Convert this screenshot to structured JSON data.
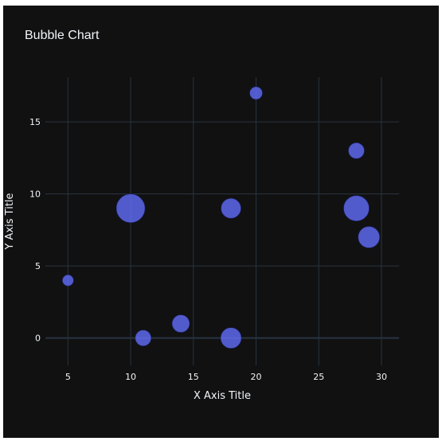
{
  "chart_data": {
    "type": "scatter",
    "title": "Bubble Chart",
    "xlabel": "X Axis Title",
    "ylabel": "Y Axis Title",
    "xlim": [
      3.2,
      31.4
    ],
    "ylim": [
      -1.9,
      18.1
    ],
    "x_ticks": [
      "5",
      "10",
      "15",
      "20",
      "25",
      "30"
    ],
    "y_ticks": [
      "0",
      "5",
      "10",
      "15"
    ],
    "grid": true,
    "marker_color": "#636efa",
    "background_color": "#111111",
    "grid_color": "#283442",
    "text_color": "#f2f5fa",
    "points": [
      {
        "x": 5,
        "y": 4,
        "size": 14
      },
      {
        "x": 10,
        "y": 9,
        "size": 36
      },
      {
        "x": 11,
        "y": 0,
        "size": 20
      },
      {
        "x": 14,
        "y": 1,
        "size": 22
      },
      {
        "x": 18,
        "y": 9,
        "size": 25
      },
      {
        "x": 18,
        "y": 0,
        "size": 26
      },
      {
        "x": 20,
        "y": 17,
        "size": 16
      },
      {
        "x": 28,
        "y": 13,
        "size": 20
      },
      {
        "x": 28,
        "y": 9,
        "size": 32
      },
      {
        "x": 29,
        "y": 7,
        "size": 27
      }
    ]
  }
}
